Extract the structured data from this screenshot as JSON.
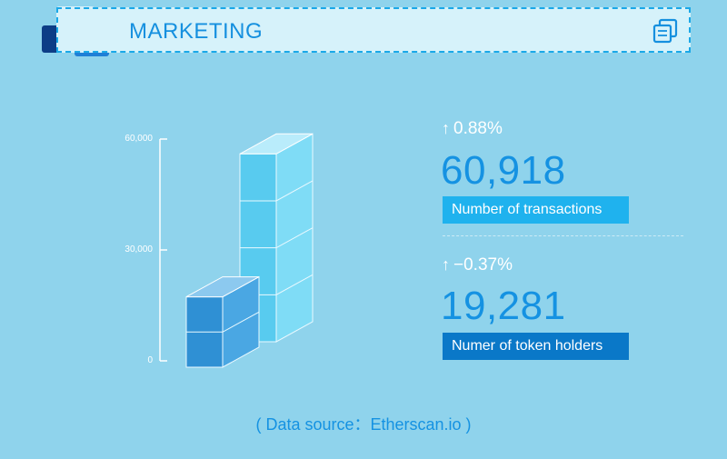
{
  "header": {
    "title": "MARKETING",
    "logo_icon": "layered-squares-logo",
    "action_icon": "copy-icon"
  },
  "chart_data": {
    "type": "bar",
    "categories": [
      "token holders",
      "transactions"
    ],
    "values": [
      19281,
      60918
    ],
    "ylim": [
      0,
      60000
    ],
    "yticks": [
      "0",
      "30,000",
      "60,000"
    ],
    "title": "",
    "xlabel": "",
    "ylabel": ""
  },
  "stats": [
    {
      "change": "0.88%",
      "value": "60,918",
      "label": "Number of  transactions",
      "label_color": "#1fb2ee"
    },
    {
      "change": "−0.37%",
      "value": "19,281",
      "label": "Numer of token holders",
      "label_color": "#0a78c8"
    }
  ],
  "footer": {
    "source": "( Data source：Etherscan.io )"
  },
  "colors": {
    "background": "#8fd3ec",
    "accent": "#1592e2",
    "bar_light": "#58cbef",
    "bar_dark": "#2f90d4"
  }
}
